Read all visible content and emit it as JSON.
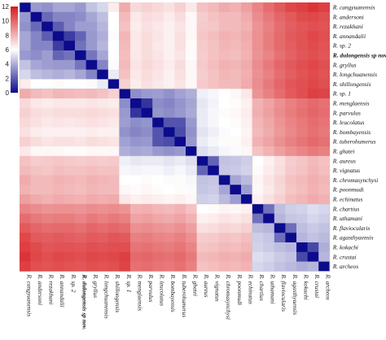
{
  "chart_data": {
    "type": "heatmap",
    "title": "",
    "xlabel": "",
    "ylabel": "",
    "labels": [
      "R. cangyuanensis",
      "R. andersoni",
      "R. rezakhani",
      "R. annandalii",
      "R. sp. 2",
      "R. dulongensis sp nov..",
      "R. gryllus",
      "R. longchuanensis",
      "R. shillongensis",
      "R. sp. 1",
      "R. menglaensis",
      "R. parvulus",
      "R. leucolatus",
      "R. bombayensis",
      "R. tuberohumerus",
      "R. ghatei",
      "R. aureus",
      "R. vignatus",
      "R. chromasynchysi",
      "R. poonmudi",
      "R. echinatus",
      "R. chartius",
      "R. uthamani",
      "R. flaviocularis",
      "R. agasthyaensis",
      "R. kokachi",
      "R. crustai",
      "R. archeos"
    ],
    "bold_label_index": 5,
    "bold_label_column_text": "R. dulongensis sp nov.",
    "colorbar": {
      "min": 0,
      "max": 12,
      "ticks": [
        0,
        2,
        4,
        6,
        8,
        10,
        12
      ],
      "low_color": "#0b0b8c",
      "mid_color": "#ffffff",
      "high_color": "#d7191c",
      "mid_value": 6
    },
    "groups": [
      {
        "start": 0,
        "end": 8
      },
      {
        "start": 9,
        "end": 15
      },
      {
        "start": 16,
        "end": 20
      },
      {
        "start": 21,
        "end": 27
      }
    ],
    "values": [
      [
        0,
        3.5,
        3.3,
        3.8,
        3.8,
        3.5,
        4.5,
        5.0,
        6.5,
        8.2,
        7.0,
        7.2,
        7.0,
        6.8,
        7.2,
        6.6,
        7.6,
        7.8,
        8.2,
        8.0,
        8.5,
        9.2,
        9.8,
        10.3,
        10.8,
        11.0,
        11.3,
        11.0
      ],
      [
        3.5,
        0,
        2.3,
        3.0,
        3.0,
        3.2,
        3.8,
        4.4,
        6.0,
        7.8,
        6.6,
        6.9,
        6.8,
        6.5,
        6.9,
        6.2,
        7.3,
        7.6,
        7.8,
        7.8,
        8.2,
        9.0,
        9.5,
        10.0,
        10.3,
        10.7,
        10.8,
        10.6
      ],
      [
        3.3,
        2.3,
        0,
        2.0,
        3.0,
        3.6,
        3.6,
        4.2,
        6.0,
        7.6,
        6.5,
        6.8,
        6.6,
        6.4,
        6.7,
        6.2,
        7.4,
        7.5,
        7.8,
        7.8,
        8.0,
        8.8,
        9.3,
        9.8,
        10.2,
        10.4,
        10.6,
        10.5
      ],
      [
        3.8,
        3.0,
        2.0,
        0,
        1.2,
        2.2,
        3.5,
        4.0,
        6.1,
        7.9,
        6.6,
        6.9,
        6.7,
        6.4,
        6.8,
        6.2,
        7.5,
        7.7,
        8.0,
        7.9,
        8.2,
        8.9,
        9.4,
        9.9,
        10.3,
        10.5,
        10.8,
        10.6
      ],
      [
        3.8,
        3.0,
        3.0,
        1.2,
        0,
        2.5,
        3.5,
        4.2,
        6.0,
        7.8,
        6.6,
        6.9,
        6.6,
        6.4,
        6.8,
        6.1,
        7.4,
        7.6,
        7.9,
        7.8,
        8.1,
        8.9,
        9.4,
        9.9,
        10.2,
        10.5,
        10.7,
        10.5
      ],
      [
        3.5,
        3.2,
        3.6,
        2.2,
        2.5,
        0,
        2.6,
        3.8,
        6.0,
        7.7,
        6.6,
        6.9,
        6.7,
        6.4,
        6.7,
        6.1,
        7.3,
        7.6,
        7.8,
        7.7,
        8.0,
        8.8,
        9.2,
        9.7,
        10.1,
        10.4,
        10.6,
        10.4
      ],
      [
        4.5,
        3.8,
        3.6,
        3.5,
        3.5,
        2.6,
        0,
        3.0,
        6.1,
        7.8,
        6.7,
        7.0,
        6.8,
        6.5,
        6.9,
        6.2,
        7.4,
        7.7,
        8.0,
        7.9,
        8.2,
        9.0,
        9.5,
        10.0,
        10.3,
        10.6,
        10.8,
        10.6
      ],
      [
        5.0,
        4.4,
        4.2,
        4.0,
        4.2,
        3.8,
        3.0,
        0,
        5.5,
        7.6,
        6.6,
        6.9,
        6.7,
        6.4,
        6.8,
        6.2,
        7.3,
        7.6,
        7.9,
        7.8,
        8.1,
        8.9,
        9.3,
        9.8,
        10.2,
        10.5,
        10.7,
        10.5
      ],
      [
        6.5,
        6.0,
        6.0,
        6.1,
        6.0,
        6.0,
        6.1,
        5.5,
        0,
        7.2,
        6.5,
        6.8,
        6.6,
        6.4,
        6.7,
        6.2,
        7.4,
        7.6,
        7.8,
        7.8,
        8.2,
        9.0,
        9.5,
        10.0,
        10.4,
        10.6,
        10.8,
        10.6
      ],
      [
        8.2,
        7.8,
        7.6,
        7.9,
        7.8,
        7.7,
        7.8,
        7.6,
        7.2,
        0,
        3.2,
        3.5,
        3.6,
        3.3,
        3.7,
        4.0,
        5.6,
        5.8,
        6.0,
        6.2,
        6.6,
        8.8,
        9.3,
        9.8,
        10.3,
        10.6,
        11.0,
        10.9
      ],
      [
        7.0,
        6.6,
        6.5,
        6.6,
        6.6,
        6.6,
        6.7,
        6.6,
        6.5,
        3.2,
        0,
        1.0,
        3.2,
        3.0,
        3.4,
        3.8,
        5.4,
        5.7,
        6.0,
        6.1,
        6.4,
        8.0,
        8.4,
        8.9,
        9.3,
        9.6,
        9.9,
        9.7
      ],
      [
        7.2,
        6.9,
        6.8,
        6.9,
        6.9,
        6.9,
        7.0,
        6.9,
        6.8,
        3.5,
        1.0,
        0,
        3.4,
        3.2,
        3.5,
        3.9,
        5.5,
        5.8,
        6.1,
        6.2,
        6.5,
        8.1,
        8.5,
        9.0,
        9.4,
        9.7,
        10.0,
        9.8
      ],
      [
        7.0,
        6.8,
        6.6,
        6.7,
        6.6,
        6.7,
        6.8,
        6.7,
        6.6,
        3.6,
        3.2,
        3.4,
        0,
        1.8,
        1.8,
        3.5,
        5.5,
        5.8,
        6.0,
        6.1,
        6.4,
        7.9,
        8.3,
        8.8,
        9.2,
        9.5,
        9.8,
        9.6
      ],
      [
        6.8,
        6.5,
        6.4,
        6.4,
        6.4,
        6.4,
        6.5,
        6.4,
        6.4,
        3.3,
        3.0,
        3.2,
        1.8,
        0,
        1.6,
        3.3,
        5.3,
        5.6,
        5.9,
        6.0,
        6.3,
        7.8,
        8.2,
        8.7,
        9.1,
        9.4,
        9.7,
        9.5
      ],
      [
        7.2,
        6.9,
        6.7,
        6.8,
        6.8,
        6.7,
        6.9,
        6.8,
        6.7,
        3.7,
        3.4,
        3.5,
        1.8,
        1.6,
        0,
        3.5,
        5.5,
        5.8,
        6.1,
        6.1,
        6.4,
        8.0,
        8.4,
        8.9,
        9.3,
        9.6,
        9.9,
        9.7
      ],
      [
        6.6,
        6.2,
        6.2,
        6.2,
        6.1,
        6.1,
        6.2,
        6.2,
        6.2,
        4.0,
        3.8,
        3.9,
        3.5,
        3.3,
        3.5,
        0,
        5.2,
        5.5,
        5.8,
        5.9,
        6.2,
        7.6,
        8.0,
        8.5,
        8.9,
        9.2,
        9.5,
        9.3
      ],
      [
        7.6,
        7.3,
        7.4,
        7.5,
        7.4,
        7.3,
        7.4,
        7.3,
        7.4,
        5.6,
        5.4,
        5.5,
        5.5,
        5.3,
        5.5,
        5.2,
        0,
        2.2,
        4.5,
        4.6,
        4.8,
        6.0,
        6.4,
        6.8,
        7.3,
        7.5,
        7.8,
        7.6
      ],
      [
        7.8,
        7.6,
        7.5,
        7.7,
        7.6,
        7.6,
        7.7,
        7.6,
        7.6,
        5.8,
        5.7,
        5.8,
        5.8,
        5.6,
        5.8,
        5.5,
        2.2,
        0,
        4.6,
        4.7,
        4.9,
        6.1,
        6.5,
        6.9,
        7.4,
        7.6,
        7.9,
        7.7
      ],
      [
        8.2,
        7.8,
        7.8,
        8.0,
        7.9,
        7.8,
        8.0,
        7.9,
        7.8,
        6.0,
        6.0,
        6.1,
        6.0,
        5.9,
        6.1,
        5.8,
        4.5,
        4.6,
        0,
        3.8,
        4.3,
        6.3,
        6.7,
        7.1,
        7.6,
        7.8,
        8.1,
        7.9
      ],
      [
        8.0,
        7.8,
        7.8,
        7.9,
        7.8,
        7.7,
        7.9,
        7.8,
        7.8,
        6.2,
        6.1,
        6.2,
        6.1,
        6.0,
        6.1,
        5.9,
        4.6,
        4.7,
        3.8,
        0,
        3.6,
        6.2,
        6.6,
        7.0,
        7.5,
        7.7,
        8.0,
        7.8
      ],
      [
        8.5,
        8.2,
        8.0,
        8.2,
        8.1,
        8.0,
        8.2,
        8.1,
        8.2,
        6.6,
        6.4,
        6.5,
        6.4,
        6.3,
        6.4,
        6.2,
        4.8,
        4.9,
        4.3,
        3.6,
        0,
        6.4,
        6.8,
        7.2,
        7.7,
        7.9,
        8.2,
        8.0
      ],
      [
        9.2,
        9.0,
        8.8,
        8.9,
        8.9,
        8.8,
        9.0,
        8.9,
        9.0,
        8.8,
        8.0,
        8.1,
        7.9,
        7.8,
        8.0,
        7.6,
        6.0,
        6.1,
        6.3,
        6.2,
        6.4,
        0,
        2.5,
        4.4,
        4.8,
        4.9,
        5.2,
        5.0
      ],
      [
        9.8,
        9.5,
        9.3,
        9.4,
        9.4,
        9.2,
        9.5,
        9.3,
        9.5,
        9.3,
        8.4,
        8.5,
        8.3,
        8.2,
        8.4,
        8.0,
        6.4,
        6.5,
        6.7,
        6.6,
        6.8,
        2.5,
        0,
        4.2,
        4.6,
        4.7,
        5.0,
        4.8
      ],
      [
        10.3,
        10.0,
        9.8,
        9.9,
        9.9,
        9.7,
        10.0,
        9.8,
        10.0,
        9.8,
        8.9,
        9.0,
        8.8,
        8.7,
        8.9,
        8.5,
        6.8,
        6.9,
        7.1,
        7.0,
        7.2,
        4.4,
        4.2,
        0,
        2.4,
        4.4,
        4.7,
        4.5
      ],
      [
        10.8,
        10.3,
        10.2,
        10.3,
        10.2,
        10.1,
        10.3,
        10.2,
        10.4,
        10.3,
        9.3,
        9.4,
        9.2,
        9.1,
        9.3,
        8.9,
        7.3,
        7.4,
        7.6,
        7.5,
        7.7,
        4.8,
        4.6,
        2.4,
        0,
        4.2,
        4.5,
        4.3
      ],
      [
        11.0,
        10.7,
        10.4,
        10.5,
        10.5,
        10.4,
        10.6,
        10.5,
        10.6,
        10.6,
        9.6,
        9.7,
        9.5,
        9.4,
        9.6,
        9.2,
        7.5,
        7.6,
        7.8,
        7.7,
        7.9,
        4.9,
        4.7,
        4.4,
        4.2,
        0,
        1.5,
        4.0
      ],
      [
        11.3,
        10.8,
        10.6,
        10.8,
        10.7,
        10.6,
        10.8,
        10.7,
        10.8,
        11.0,
        9.9,
        10.0,
        9.8,
        9.7,
        9.9,
        9.5,
        7.8,
        7.9,
        8.1,
        8.0,
        8.2,
        5.2,
        5.0,
        4.7,
        4.5,
        1.5,
        0,
        4.2
      ],
      [
        11.0,
        10.6,
        10.5,
        10.6,
        10.5,
        10.4,
        10.6,
        10.5,
        10.6,
        10.9,
        9.7,
        9.8,
        9.6,
        9.5,
        9.7,
        9.3,
        7.6,
        7.7,
        7.9,
        7.8,
        8.0,
        5.0,
        4.8,
        4.5,
        4.3,
        4.0,
        4.2,
        0
      ]
    ]
  }
}
